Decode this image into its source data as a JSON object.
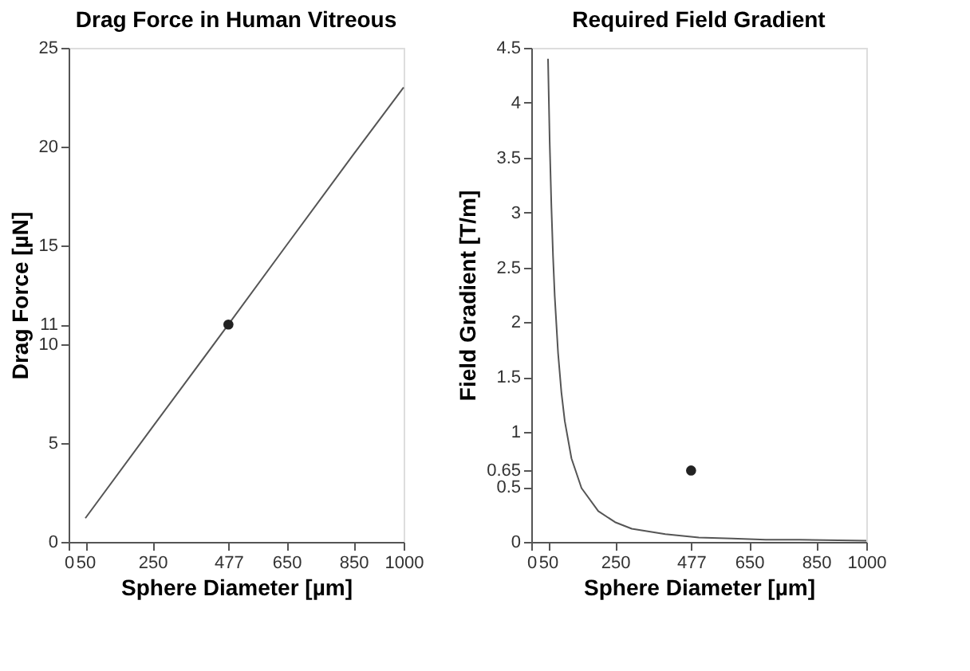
{
  "chart_data": [
    {
      "type": "line",
      "title": "Drag Force in Human Vitreous",
      "xlabel": "Sphere Diameter [µm]",
      "ylabel": "Drag Force [µN]",
      "xlim": [
        0,
        1000
      ],
      "xticks": [
        0,
        50,
        250,
        477,
        650,
        850,
        1000
      ],
      "ylim": [
        0,
        25
      ],
      "yticks": [
        0,
        5,
        10,
        11,
        15,
        20,
        25
      ],
      "grid": false,
      "legend": false,
      "series": [
        {
          "color": "#555555",
          "x": [
            50,
            250,
            477,
            650,
            850,
            1000
          ],
          "values": [
            1.2,
            5.8,
            11,
            15,
            19.6,
            23
          ],
          "marker": "none"
        },
        {
          "type": "scatter",
          "color": "#222222",
          "x": [
            477
          ],
          "values": [
            11
          ],
          "marker": "circle"
        }
      ]
    },
    {
      "type": "line",
      "title": "Required Field Gradient",
      "xlabel": "Sphere Diameter [µm]",
      "ylabel": "Field Gradient [T/m]",
      "xlim": [
        0,
        1000
      ],
      "xticks": [
        0,
        50,
        250,
        477,
        650,
        850,
        1000
      ],
      "ylim": [
        0,
        4.5
      ],
      "yticks": [
        0,
        0.5,
        0.65,
        1,
        1.5,
        2,
        2.5,
        3,
        3.5,
        4,
        4.5
      ],
      "grid": false,
      "legend": false,
      "series": [
        {
          "color": "#555555",
          "x": [
            50,
            55,
            60,
            65,
            70,
            80,
            90,
            100,
            120,
            150,
            200,
            250,
            300,
            400,
            500,
            600,
            700,
            800,
            1000
          ],
          "values": [
            4.4,
            3.64,
            3.06,
            2.6,
            2.24,
            1.72,
            1.36,
            1.1,
            0.76,
            0.49,
            0.28,
            0.18,
            0.12,
            0.07,
            0.04,
            0.03,
            0.02,
            0.02,
            0.01
          ],
          "marker": "none"
        },
        {
          "type": "scatter",
          "color": "#222222",
          "x": [
            477
          ],
          "values": [
            0.65
          ],
          "marker": "circle"
        }
      ]
    }
  ]
}
